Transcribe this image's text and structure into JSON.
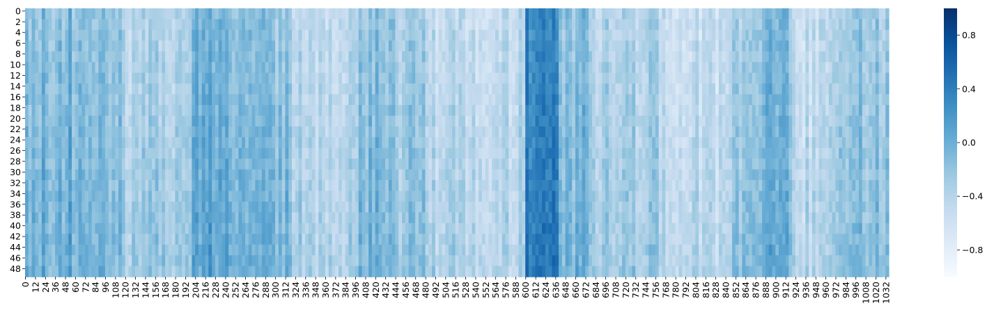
{
  "chart_data": {
    "type": "heatmap",
    "title": "",
    "xlabel": "",
    "ylabel": "",
    "rows": 50,
    "cols": 1036,
    "colormap": "Blues",
    "color_low": "#f7fbff",
    "color_high": "#08306b",
    "vmin": -1.0,
    "vmax": 1.0,
    "y_ticks": [
      "0",
      "2",
      "4",
      "6",
      "8",
      "10",
      "12",
      "14",
      "16",
      "18",
      "20",
      "22",
      "24",
      "26",
      "28",
      "30",
      "32",
      "34",
      "36",
      "38",
      "40",
      "42",
      "44",
      "46",
      "48"
    ],
    "x_ticks": [
      "0",
      "12",
      "24",
      "36",
      "48",
      "60",
      "72",
      "84",
      "96",
      "108",
      "120",
      "132",
      "144",
      "156",
      "168",
      "180",
      "192",
      "204",
      "216",
      "228",
      "240",
      "252",
      "264",
      "276",
      "288",
      "300",
      "312",
      "324",
      "336",
      "348",
      "360",
      "372",
      "384",
      "396",
      "408",
      "420",
      "432",
      "444",
      "456",
      "468",
      "480",
      "492",
      "504",
      "516",
      "528",
      "540",
      "552",
      "564",
      "576",
      "588",
      "600",
      "612",
      "624",
      "636",
      "648",
      "660",
      "672",
      "684",
      "696",
      "708",
      "720",
      "732",
      "744",
      "756",
      "768",
      "780",
      "792",
      "804",
      "816",
      "828",
      "840",
      "852",
      "864",
      "876",
      "888",
      "900",
      "912",
      "924",
      "936",
      "948",
      "960",
      "972",
      "984",
      "996",
      "1008",
      "1020",
      "1032"
    ],
    "colorbar_ticks": [
      "0.8",
      "0.4",
      "0.0",
      "−0.4",
      "−0.8"
    ],
    "colorbar_tick_values": [
      0.8,
      0.4,
      0.0,
      -0.4,
      -0.8
    ],
    "column_bands": [
      {
        "start": 0,
        "end": 80,
        "value": -0.05
      },
      {
        "start": 80,
        "end": 120,
        "value": -0.1
      },
      {
        "start": 120,
        "end": 160,
        "value": -0.3
      },
      {
        "start": 160,
        "end": 200,
        "value": -0.35
      },
      {
        "start": 200,
        "end": 240,
        "value": 0.05
      },
      {
        "start": 240,
        "end": 280,
        "value": -0.05
      },
      {
        "start": 280,
        "end": 320,
        "value": -0.1
      },
      {
        "start": 320,
        "end": 360,
        "value": -0.35
      },
      {
        "start": 360,
        "end": 400,
        "value": -0.4
      },
      {
        "start": 400,
        "end": 440,
        "value": -0.15
      },
      {
        "start": 440,
        "end": 480,
        "value": -0.25
      },
      {
        "start": 480,
        "end": 600,
        "value": -0.4
      },
      {
        "start": 600,
        "end": 640,
        "value": 0.45
      },
      {
        "start": 640,
        "end": 680,
        "value": -0.1
      },
      {
        "start": 680,
        "end": 760,
        "value": -0.35
      },
      {
        "start": 760,
        "end": 840,
        "value": -0.45
      },
      {
        "start": 840,
        "end": 880,
        "value": -0.3
      },
      {
        "start": 880,
        "end": 920,
        "value": -0.05
      },
      {
        "start": 920,
        "end": 960,
        "value": -0.45
      },
      {
        "start": 960,
        "end": 1000,
        "value": -0.3
      },
      {
        "start": 1000,
        "end": 1036,
        "value": -0.2
      }
    ]
  }
}
